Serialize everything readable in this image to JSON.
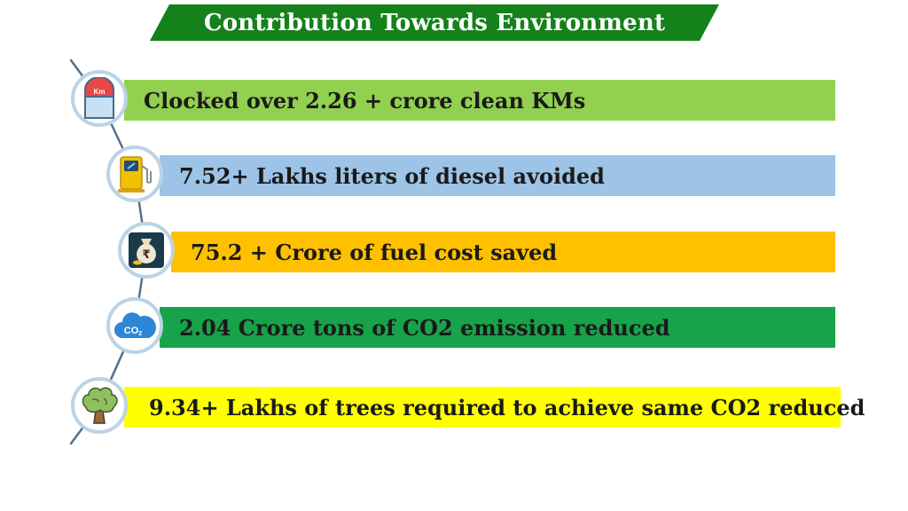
{
  "title": "Contribution Towards Environment",
  "colors": {
    "title_bg": "#15811b",
    "badge_border": "#bcd3e6",
    "spine": "#55708a"
  },
  "items": [
    {
      "text": "Clocked over 2.26 + crore clean KMs",
      "color": "#92d050",
      "icon": "km-milestone-icon"
    },
    {
      "text": "7.52+ Lakhs liters of diesel avoided",
      "color": "#9dc3e6",
      "icon": "fuel-pump-icon"
    },
    {
      "text": "75.2 + Crore of fuel cost saved",
      "color": "#ffc000",
      "icon": "rupee-money-bag-icon"
    },
    {
      "text": "2.04 Crore tons of CO2 emission reduced",
      "color": "#17a34a",
      "icon": "co2-cloud-icon"
    },
    {
      "text": "9.34+ Lakhs of trees required to achieve same CO2 reduced",
      "color": "#ffff00",
      "icon": "tree-icon"
    }
  ],
  "icon_labels": {
    "km": "Km",
    "rupee": "₹",
    "co2": "CO",
    "co2_sub": "2"
  }
}
